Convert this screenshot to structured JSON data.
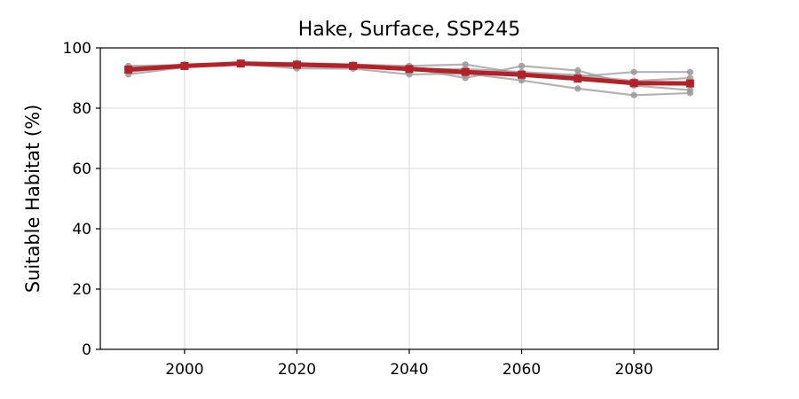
{
  "chart_data": {
    "type": "line",
    "title": "Hake, Surface, SSP245",
    "xlabel": "",
    "ylabel": "Suitable Habitat (%)",
    "xlim": [
      1985,
      2095
    ],
    "ylim": [
      0,
      100
    ],
    "xticks": [
      2000,
      2020,
      2040,
      2060,
      2080
    ],
    "yticks": [
      0,
      20,
      40,
      60,
      80,
      100
    ],
    "grid": true,
    "x": [
      1990,
      2000,
      2010,
      2020,
      2030,
      2040,
      2050,
      2060,
      2070,
      2080,
      2090
    ],
    "series": [
      {
        "values": [
          91.2,
          93.6,
          94.6,
          93.2,
          93.1,
          91.2,
          91.5,
          89.2,
          86.5,
          84.3,
          85.0
        ],
        "color": "#999999",
        "style": "member"
      },
      {
        "values": [
          93.5,
          94.5,
          95.0,
          95.0,
          94.5,
          94.0,
          94.5,
          91.5,
          90.5,
          92.0,
          92.0
        ],
        "color": "#999999",
        "style": "member"
      },
      {
        "values": [
          92.0,
          94.0,
          94.8,
          94.2,
          93.9,
          93.3,
          90.0,
          94.0,
          92.5,
          87.5,
          86.0
        ],
        "color": "#999999",
        "style": "member"
      },
      {
        "values": [
          94.0,
          94.3,
          94.9,
          94.6,
          94.0,
          92.8,
          93.0,
          92.0,
          91.0,
          89.0,
          90.0
        ],
        "color": "#999999",
        "style": "member"
      },
      {
        "values": [
          92.8,
          94.0,
          94.8,
          94.4,
          94.0,
          93.0,
          92.0,
          91.1,
          89.8,
          88.3,
          88.2
        ],
        "color": "#b22228",
        "style": "mean"
      }
    ]
  }
}
